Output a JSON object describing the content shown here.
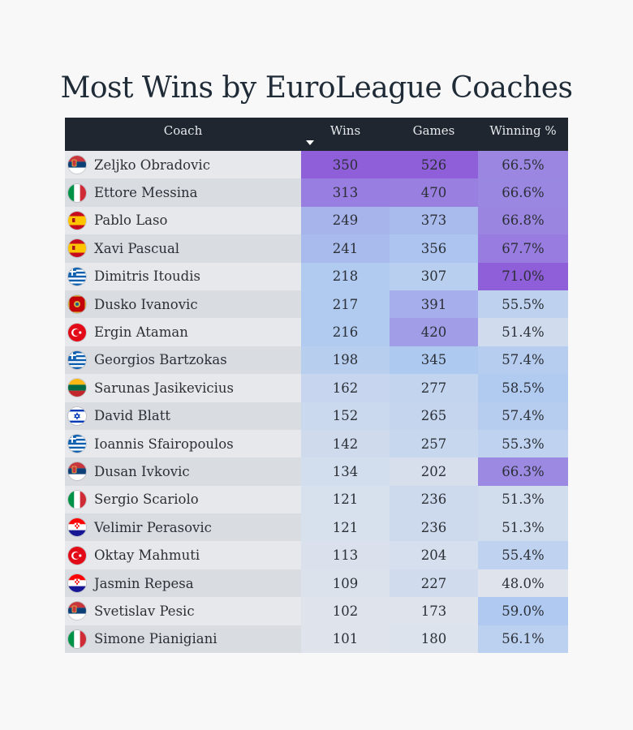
{
  "title": "Most Wins by EuroLeague Coaches",
  "columns": {
    "coach": "Coach",
    "wins": "Wins",
    "games": "Games",
    "pct": "Winning %"
  },
  "sort": {
    "column": "Wins",
    "direction": "descending"
  },
  "colors": {
    "header_bg": "#1f2630",
    "header_text": "#e8eaed",
    "row_light": "#e6e8eb",
    "row_dark": "#d9dce1",
    "scale_low": "#dfe4ec",
    "scale_mid": "#adc8f0",
    "scale_high": "#8f5ed9"
  },
  "chart_data": {
    "type": "table",
    "title": "Most Wins by EuroLeague Coaches",
    "columns": [
      "Coach",
      "Wins",
      "Games",
      "Winning %"
    ],
    "rows": [
      {
        "coach": "Zeljko Obradovic",
        "flag": "serbia",
        "wins": 350,
        "games": 526,
        "pct": "66.5%"
      },
      {
        "coach": "Ettore Messina",
        "flag": "italy",
        "wins": 313,
        "games": 470,
        "pct": "66.6%"
      },
      {
        "coach": "Pablo Laso",
        "flag": "spain",
        "wins": 249,
        "games": 373,
        "pct": "66.8%"
      },
      {
        "coach": "Xavi Pascual",
        "flag": "spain",
        "wins": 241,
        "games": 356,
        "pct": "67.7%"
      },
      {
        "coach": "Dimitris Itoudis",
        "flag": "greece",
        "wins": 218,
        "games": 307,
        "pct": "71.0%"
      },
      {
        "coach": "Dusko Ivanovic",
        "flag": "montenegro",
        "wins": 217,
        "games": 391,
        "pct": "55.5%"
      },
      {
        "coach": "Ergin Ataman",
        "flag": "turkey",
        "wins": 216,
        "games": 420,
        "pct": "51.4%"
      },
      {
        "coach": "Georgios Bartzokas",
        "flag": "greece",
        "wins": 198,
        "games": 345,
        "pct": "57.4%"
      },
      {
        "coach": "Sarunas Jasikevicius",
        "flag": "lithuania",
        "wins": 162,
        "games": 277,
        "pct": "58.5%"
      },
      {
        "coach": "David Blatt",
        "flag": "israel",
        "wins": 152,
        "games": 265,
        "pct": "57.4%"
      },
      {
        "coach": "Ioannis Sfairopoulos",
        "flag": "greece",
        "wins": 142,
        "games": 257,
        "pct": "55.3%"
      },
      {
        "coach": "Dusan Ivkovic",
        "flag": "serbia",
        "wins": 134,
        "games": 202,
        "pct": "66.3%"
      },
      {
        "coach": "Sergio Scariolo",
        "flag": "italy",
        "wins": 121,
        "games": 236,
        "pct": "51.3%"
      },
      {
        "coach": "Velimir Perasovic",
        "flag": "croatia",
        "wins": 121,
        "games": 236,
        "pct": "51.3%"
      },
      {
        "coach": "Oktay Mahmuti",
        "flag": "turkey",
        "wins": 113,
        "games": 204,
        "pct": "55.4%"
      },
      {
        "coach": "Jasmin Repesa",
        "flag": "croatia",
        "wins": 109,
        "games": 227,
        "pct": "48.0%"
      },
      {
        "coach": "Svetislav Pesic",
        "flag": "serbia",
        "wins": 102,
        "games": 173,
        "pct": "59.0%"
      },
      {
        "coach": "Simone Pianigiani",
        "flag": "italy",
        "wins": 101,
        "games": 180,
        "pct": "56.1%"
      }
    ]
  }
}
